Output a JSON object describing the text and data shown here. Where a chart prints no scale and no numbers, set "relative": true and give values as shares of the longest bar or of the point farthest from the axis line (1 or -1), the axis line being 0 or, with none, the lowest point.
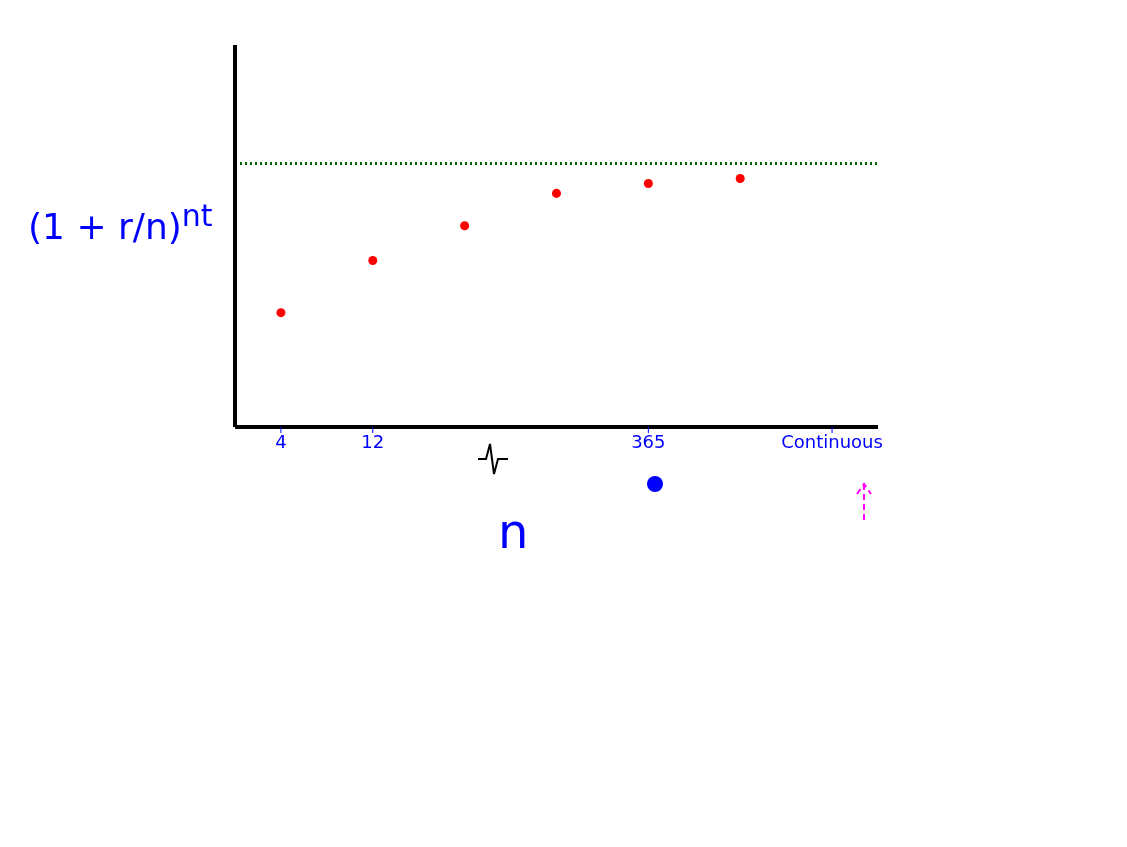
{
  "chart_data": {
    "type": "scatter",
    "relative": true,
    "xlabel": "n",
    "ylabel": "(1 + r/n)$^{nt}$",
    "categories": [
      "4",
      "12",
      null,
      null,
      "365",
      null,
      "Continuous"
    ],
    "series": [
      {
        "color": "#ff0000",
        "values": [
          0.46,
          0.67,
          0.81,
          0.94,
          0.98,
          1,
          null
        ]
      }
    ],
    "marker": "circle",
    "ref_lines": [
      {
        "axis": "y",
        "value": 1.06,
        "color": "#006400",
        "line_style": "dotted"
      }
    ]
  }
}
